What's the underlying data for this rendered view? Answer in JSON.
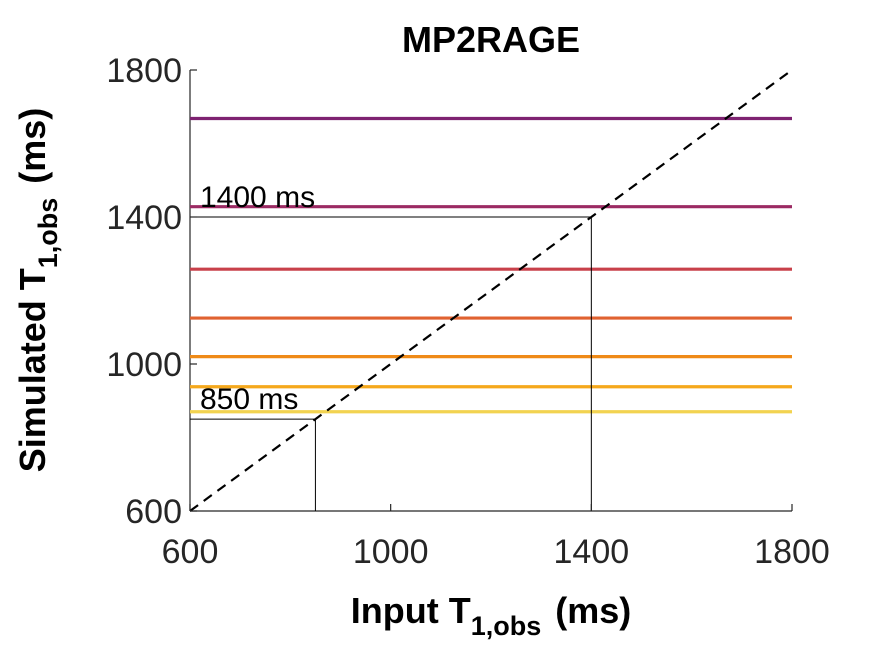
{
  "chart_data": {
    "type": "line",
    "title": "MP2RAGE",
    "xlabel": {
      "main": "Input T",
      "sub": "1,obs",
      "unit": "(ms)"
    },
    "ylabel": {
      "main": "Simulated T",
      "sub": "1,obs",
      "unit": "(ms)"
    },
    "xlim": [
      600,
      1800
    ],
    "ylim": [
      600,
      1800
    ],
    "xticks": [
      600,
      1000,
      1400,
      1800
    ],
    "yticks": [
      600,
      1000,
      1400,
      1800
    ],
    "grid": false,
    "series": [
      {
        "values": [
          870,
          870
        ],
        "x": [
          600,
          1800
        ],
        "color": "#f2d350"
      },
      {
        "values": [
          938,
          938
        ],
        "x": [
          600,
          1800
        ],
        "color": "#f5a81c"
      },
      {
        "values": [
          1020,
          1020
        ],
        "x": [
          600,
          1800
        ],
        "color": "#ef8a17"
      },
      {
        "values": [
          1125,
          1125
        ],
        "x": [
          600,
          1800
        ],
        "color": "#e06230"
      },
      {
        "values": [
          1258,
          1258
        ],
        "x": [
          600,
          1800
        ],
        "color": "#c8404a"
      },
      {
        "values": [
          1428,
          1428
        ],
        "x": [
          600,
          1800
        ],
        "color": "#9b2a63"
      },
      {
        "values": [
          1668,
          1668
        ],
        "x": [
          600,
          1800
        ],
        "color": "#7e2271"
      }
    ],
    "identity_line": {
      "x": [
        600,
        1800
      ],
      "y": [
        600,
        1800
      ],
      "style": "dashed",
      "color": "#000000"
    },
    "annotations": [
      {
        "text": "1400 ms",
        "x": 1400,
        "y": 1400
      },
      {
        "text": "850 ms",
        "x": 850,
        "y": 850
      }
    ]
  }
}
